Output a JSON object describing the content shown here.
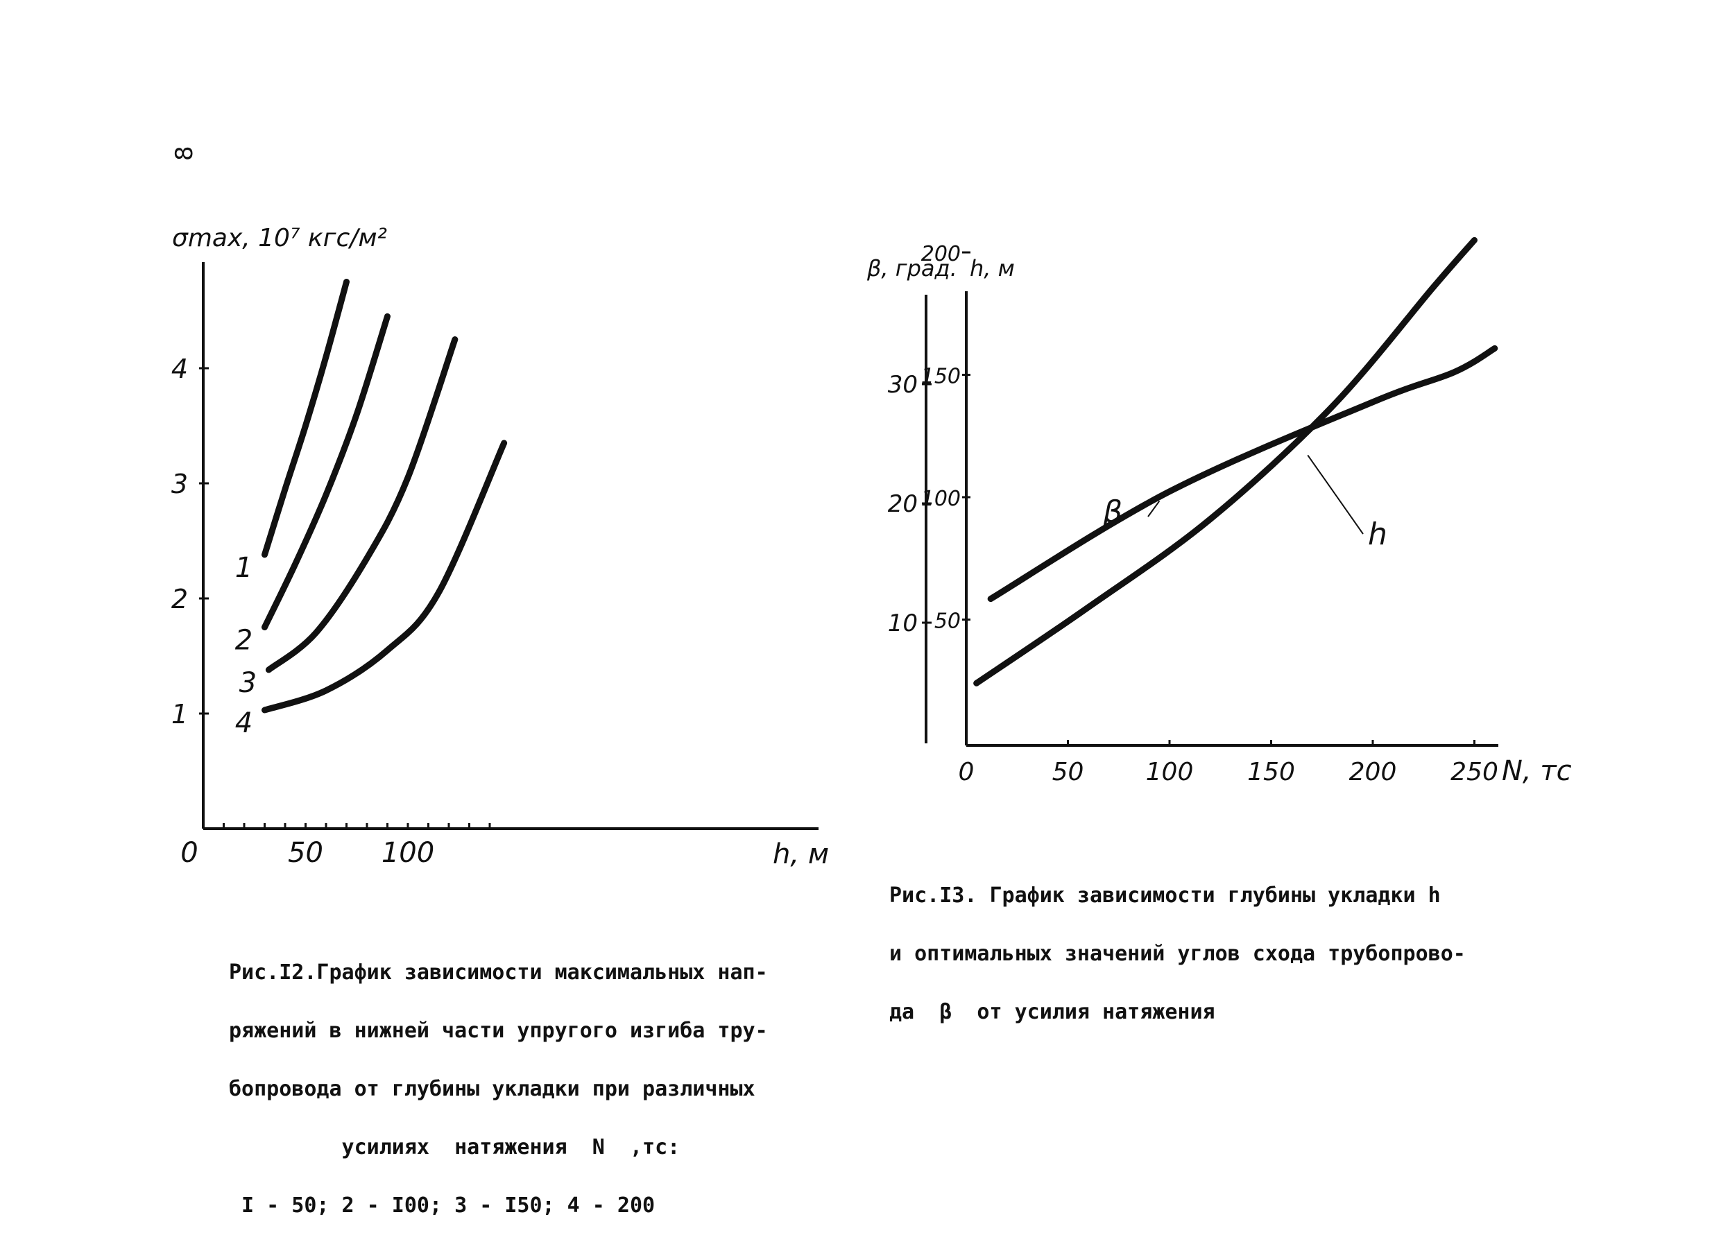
{
  "page": {
    "number": "8"
  },
  "chart_data": [
    {
      "type": "line",
      "ylabel": "σmax, 10⁷ кгс/м²",
      "xlabel": "h, м",
      "x_ticks": [
        "0",
        "50",
        "100"
      ],
      "y_ticks": [
        "1",
        "2",
        "3",
        "4"
      ],
      "xlim": [
        0,
        150
      ],
      "ylim": [
        0,
        4.8
      ],
      "series": [
        {
          "name": "1",
          "x": [
            30,
            40,
            50,
            60,
            70
          ],
          "values": [
            2.38,
            2.95,
            3.5,
            4.1,
            4.75
          ]
        },
        {
          "name": "2",
          "x": [
            30,
            45,
            60,
            75,
            90
          ],
          "values": [
            1.75,
            2.3,
            2.9,
            3.6,
            4.45
          ]
        },
        {
          "name": "3",
          "x": [
            32,
            55,
            80,
            100,
            123
          ],
          "values": [
            1.38,
            1.7,
            2.35,
            3.05,
            4.25
          ]
        },
        {
          "name": "4",
          "x": [
            30,
            60,
            90,
            115,
            147
          ],
          "values": [
            1.03,
            1.2,
            1.55,
            2.05,
            3.35
          ]
        }
      ],
      "caption": {
        "lines": [
          "Рис.I2.График зависимости максимальных нап-",
          "ряжений в нижней части упругого изгиба тру-",
          "бопровода от глубины укладки при различных",
          "         усилиях  натяжения  N  ,тс:",
          " I - 50; 2 - I00; 3 - I50; 4 - 200"
        ]
      }
    },
    {
      "type": "line",
      "ylabel_beta": "β, град.",
      "ylabel_h": "h, м",
      "xlabel": "N, тс",
      "x_ticks": [
        "0",
        "50",
        "100",
        "150",
        "200",
        "250"
      ],
      "beta_ticks": [
        "10",
        "20",
        "30"
      ],
      "h_ticks": [
        "50",
        "100",
        "150",
        "200"
      ],
      "xlim": [
        0,
        260
      ],
      "series": [
        {
          "name": "β",
          "axis": "beta",
          "x": [
            12,
            100,
            200,
            240,
            260
          ],
          "values": [
            12,
            21,
            28.5,
            31,
            33
          ]
        },
        {
          "name": "h",
          "axis": "h",
          "x": [
            5,
            60,
            120,
            180,
            230,
            250
          ],
          "values": [
            24,
            55,
            91,
            137,
            186,
            205
          ]
        }
      ],
      "caption": {
        "lines": [
          "Рис.I3. График зависимости глубины укладки h",
          "и оптимальных значений углов схода трубопрово-",
          "да  β  от усилия натяжения"
        ]
      }
    }
  ]
}
